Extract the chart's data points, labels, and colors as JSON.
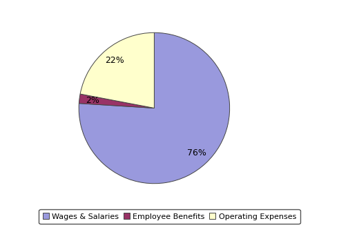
{
  "labels": [
    "Wages & Salaries",
    "Employee Benefits",
    "Operating Expenses"
  ],
  "values": [
    76,
    2,
    22
  ],
  "colors": [
    "#9999dd",
    "#993366",
    "#ffffcc"
  ],
  "edge_color": "#444444",
  "legend_labels": [
    "Wages & Salaries",
    "Employee Benefits",
    "Operating Expenses"
  ],
  "background_color": "#ffffff",
  "startangle": 90,
  "font_size": 9,
  "legend_font_size": 8,
  "pct_distance": 0.82
}
